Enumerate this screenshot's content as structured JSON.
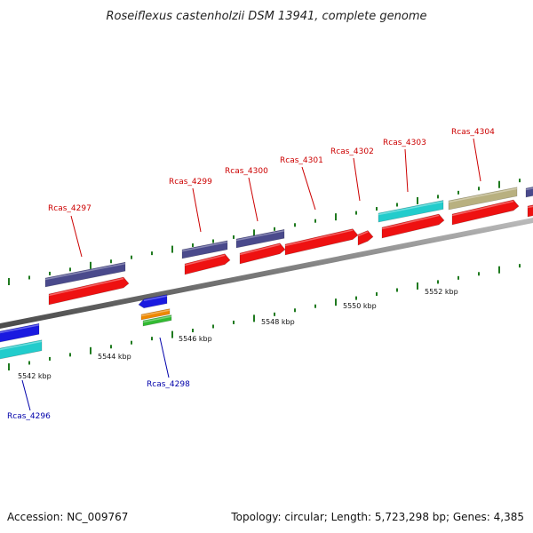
{
  "title": "Roseiflexus castenholzii DSM 13941, complete genome",
  "footer": {
    "accession": "Accession: NC_009767",
    "summary": "Topology: circular; Length: 5,723,298 bp; Genes: 4,385"
  },
  "ruler": [
    "5542 kbp",
    "5544 kbp",
    "5546 kbp",
    "5548 kbp",
    "5550 kbp",
    "5552 kbp"
  ],
  "genes": [
    {
      "name": "Rcas_4296",
      "strand": "minus"
    },
    {
      "name": "Rcas_4297",
      "strand": "plus"
    },
    {
      "name": "Rcas_4298",
      "strand": "minus"
    },
    {
      "name": "Rcas_4299",
      "strand": "plus"
    },
    {
      "name": "Rcas_4300",
      "strand": "plus"
    },
    {
      "name": "Rcas_4301",
      "strand": "plus"
    },
    {
      "name": "Rcas_4302",
      "strand": "plus"
    },
    {
      "name": "Rcas_4303",
      "strand": "plus"
    },
    {
      "name": "Rcas_4304",
      "strand": "plus"
    }
  ],
  "colors": {
    "plus_label": "#cc0000",
    "minus_label": "#0000aa",
    "cds": "#ee1111",
    "gene": "#4a4a8c",
    "rrna": "#22cccc",
    "trna": "#b8b080",
    "minus_gene": "#1a1ae0",
    "orange": "#ee8800",
    "green": "#33bb33",
    "tick": "#1f7a1f",
    "backbone": "#8a8a8a"
  }
}
